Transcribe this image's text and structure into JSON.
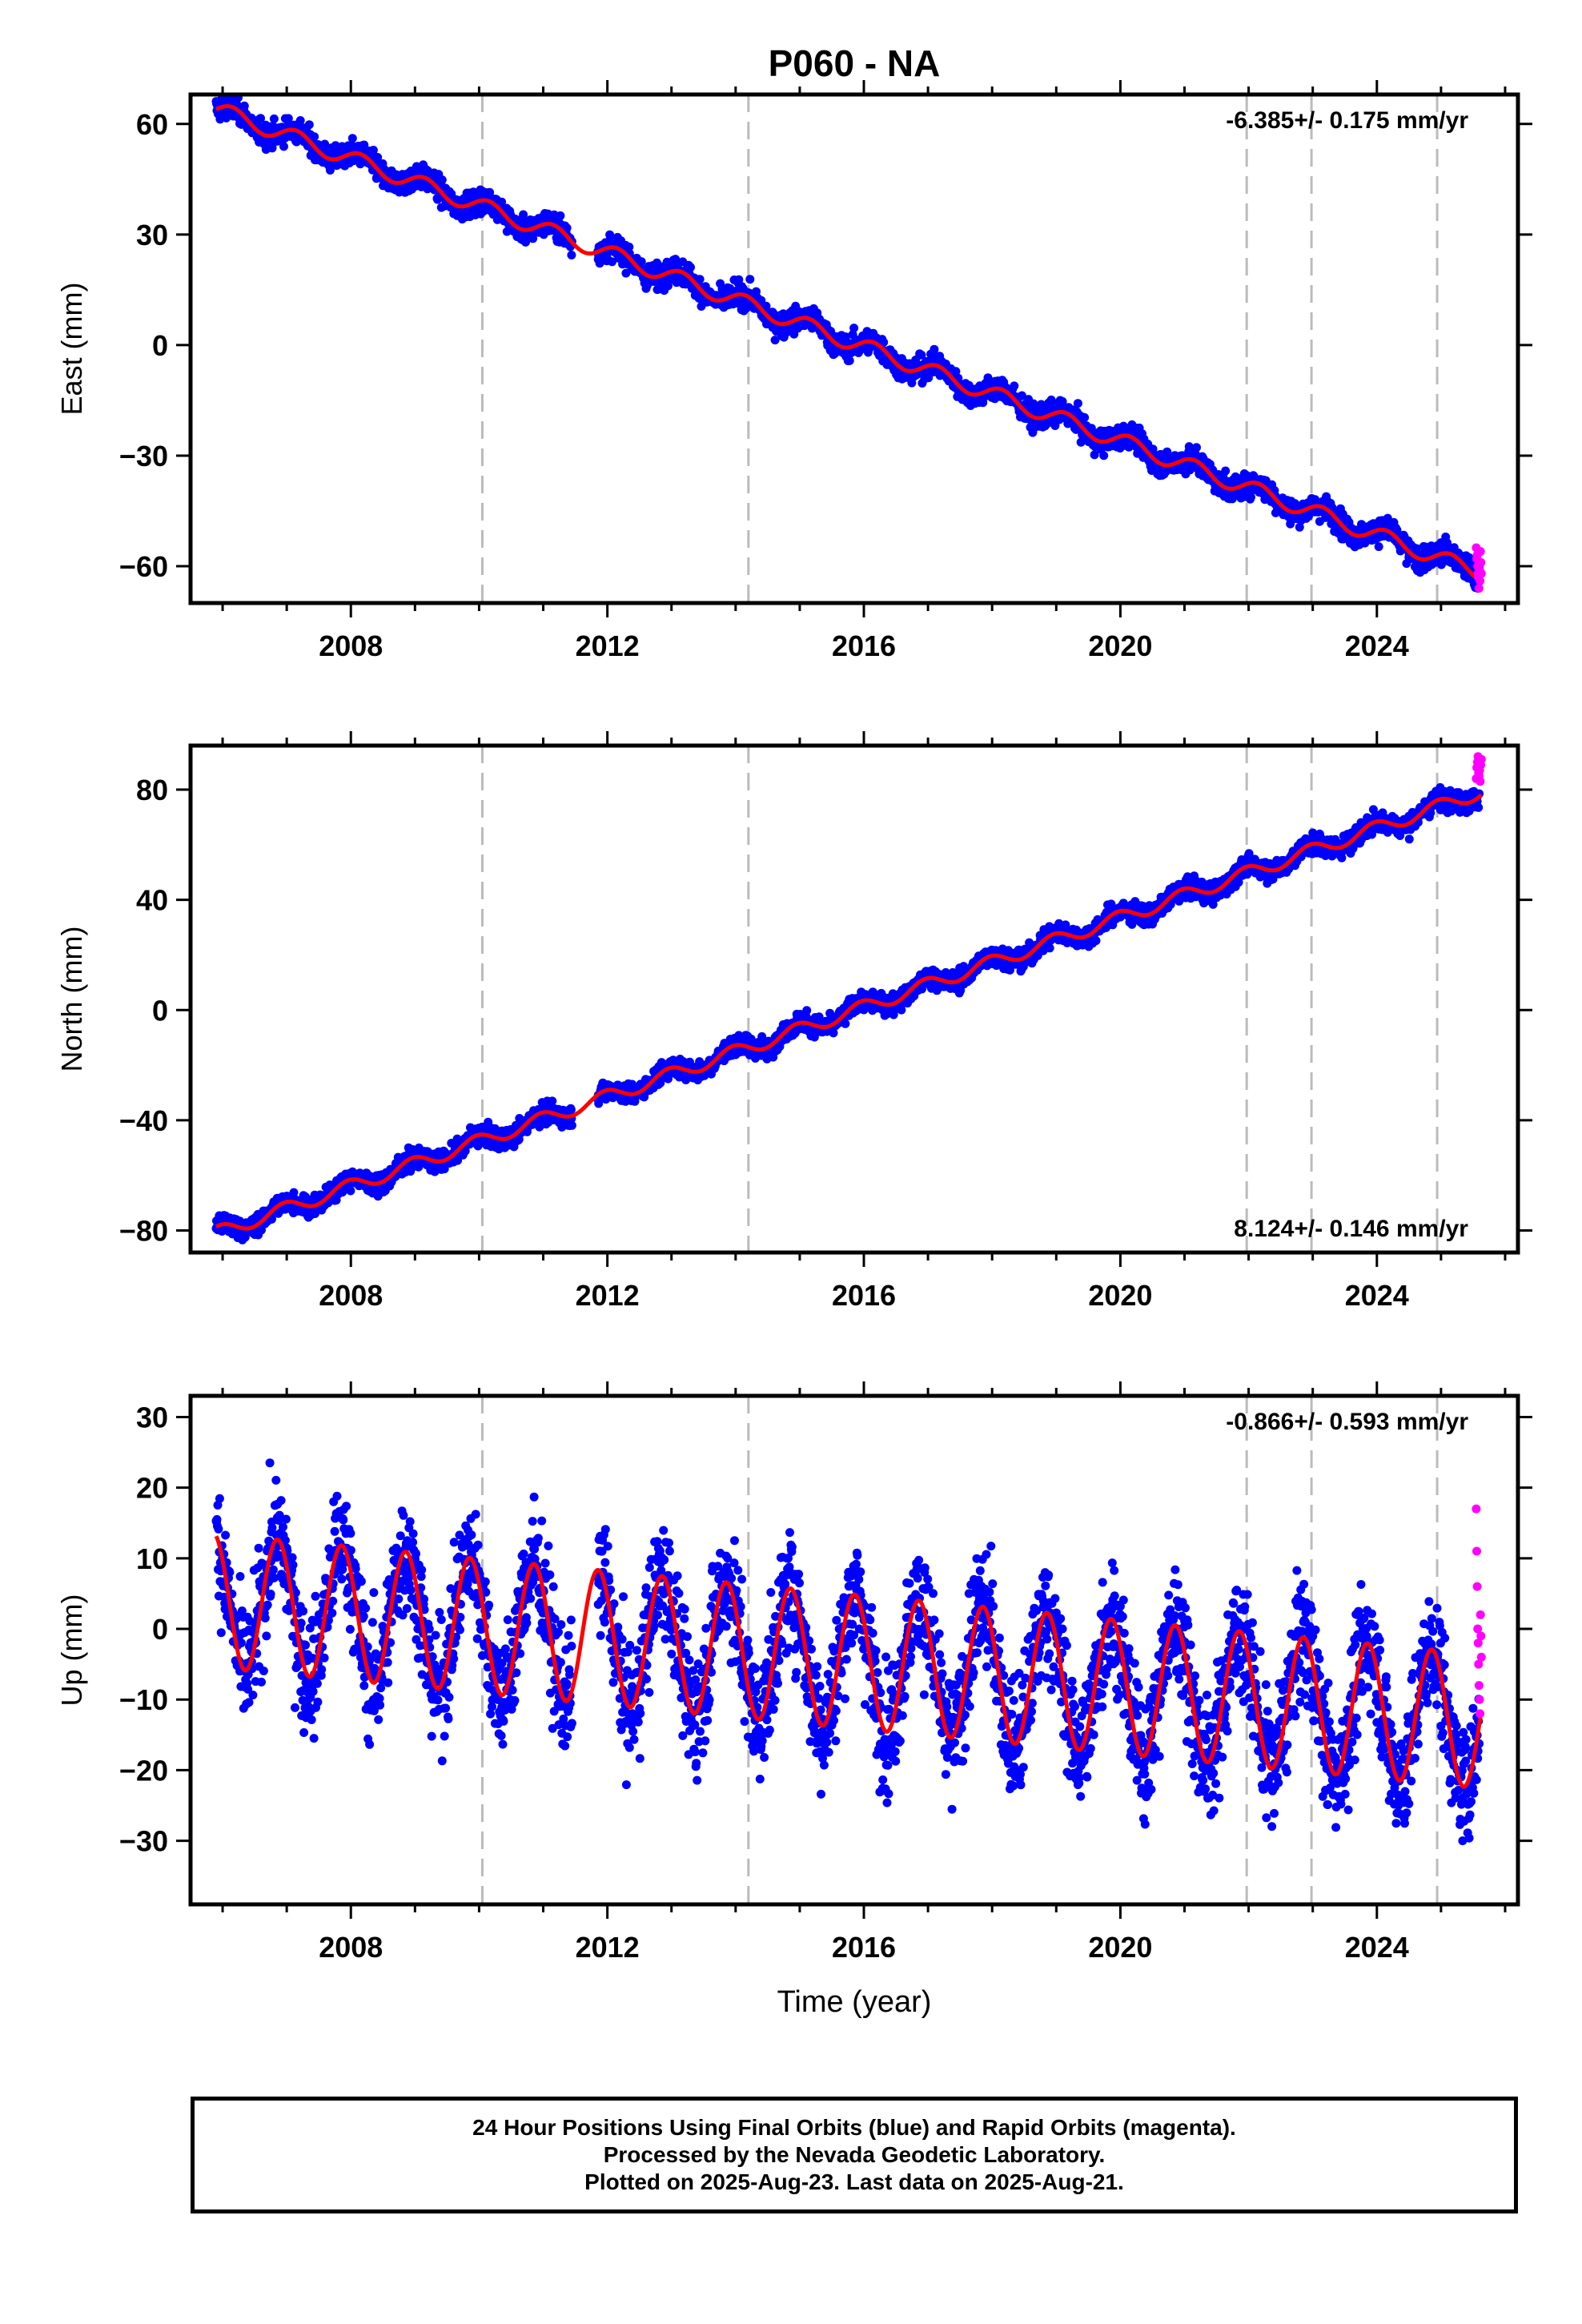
{
  "title": "P060 - NA",
  "xlabel": "Time (year)",
  "footer": {
    "lines": [
      "24 Hour Positions Using Final Orbits (blue) and Rapid Orbits (magenta).",
      "Processed by the Nevada Geodetic Laboratory.",
      "Plotted on 2025-Aug-23. Last data on 2025-Aug-21."
    ]
  },
  "colors": {
    "final": "#0000ff",
    "rapid": "#ff00ff",
    "model": "#ff0000",
    "event_line": "#bbbbbb",
    "frame": "#000000"
  },
  "chart_data": [
    {
      "type": "scatter",
      "component": "East",
      "ylabel": "East (mm)",
      "rate_text": "-6.385+/- 0.175 mm/yr",
      "rate_position": "top-right",
      "xlim": [
        2005.5,
        2026.2
      ],
      "ylim": [
        -70,
        68
      ],
      "yticks": [
        -60,
        -30,
        0,
        30,
        60
      ],
      "yticklabels": [
        "−60",
        "−30",
        "0",
        "30",
        "60"
      ],
      "xticks": [
        2008,
        2012,
        2016,
        2020,
        2024
      ],
      "xticklabels": [
        "2008",
        "2012",
        "2016",
        "2020",
        "2024"
      ],
      "event_lines": [
        2010.05,
        2014.2,
        2021.97,
        2022.98,
        2024.94
      ],
      "model": {
        "start": 2005.9,
        "end": 2025.63,
        "value_at_start": 64.0,
        "rate_mm_yr": -6.385,
        "annual_amp": 2.2,
        "annual_phase": 0.0
      },
      "data_range": [
        2005.9,
        2025.6
      ],
      "noise_mm": 1.6,
      "gaps": [
        [
          2011.45,
          2011.85
        ]
      ],
      "rapid": {
        "start": 2025.55,
        "end": 2025.63,
        "values": [
          -55,
          -58,
          -57,
          -60,
          -62,
          -63,
          -66,
          -61,
          -64,
          -56,
          -59,
          -62
        ]
      }
    },
    {
      "type": "scatter",
      "component": "North",
      "ylabel": "North (mm)",
      "rate_text": "8.124+/- 0.146 mm/yr",
      "rate_position": "bottom-right",
      "xlim": [
        2005.5,
        2026.2
      ],
      "ylim": [
        -88,
        96
      ],
      "yticks": [
        -80,
        -40,
        0,
        40,
        80
      ],
      "yticklabels": [
        "−80",
        "−40",
        "0",
        "40",
        "80"
      ],
      "xticks": [
        2008,
        2012,
        2016,
        2020,
        2024
      ],
      "xticklabels": [
        "2008",
        "2012",
        "2016",
        "2020",
        "2024"
      ],
      "event_lines": [
        2010.05,
        2014.2,
        2021.97,
        2022.98,
        2024.94
      ],
      "model": {
        "start": 2005.9,
        "end": 2025.63,
        "value_at_start": -81.0,
        "rate_mm_yr": 8.124,
        "annual_amp": 2.5,
        "annual_phase": 1.2
      },
      "data_range": [
        2005.9,
        2025.6
      ],
      "noise_mm": 1.8,
      "gaps": [
        [
          2011.45,
          2011.85
        ]
      ],
      "rapid": {
        "start": 2025.55,
        "end": 2025.63,
        "values": [
          84,
          88,
          90,
          92,
          86,
          85,
          87,
          83,
          89,
          91
        ]
      }
    },
    {
      "type": "scatter",
      "component": "Up",
      "ylabel": "Up (mm)",
      "rate_text": "-0.866+/- 0.593 mm/yr",
      "rate_position": "top-right",
      "xlim": [
        2005.5,
        2026.2
      ],
      "ylim": [
        -39,
        33
      ],
      "yticks": [
        -30,
        -20,
        -10,
        0,
        10,
        20,
        30
      ],
      "yticklabels": [
        "−30",
        "−20",
        "−10",
        "0",
        "10",
        "20",
        "30"
      ],
      "xticks": [
        2008,
        2012,
        2016,
        2020,
        2024
      ],
      "xticklabels": [
        "2008",
        "2012",
        "2016",
        "2020",
        "2024"
      ],
      "event_lines": [
        2010.05,
        2014.2,
        2021.97,
        2022.98,
        2024.94
      ],
      "model": {
        "start": 2005.9,
        "end": 2025.63,
        "value_at_start": 4.0,
        "rate_mm_yr": -0.866,
        "annual_amp": 9.5,
        "annual_phase": 1.85
      },
      "data_range": [
        2005.9,
        2025.6
      ],
      "noise_mm": 4.2,
      "gaps": [
        [
          2011.45,
          2011.85
        ]
      ],
      "rapid": {
        "start": 2025.55,
        "end": 2025.63,
        "values": [
          17,
          11,
          6,
          0,
          -2,
          -5,
          -8,
          -10,
          -12,
          2,
          -1,
          -4
        ]
      }
    }
  ]
}
